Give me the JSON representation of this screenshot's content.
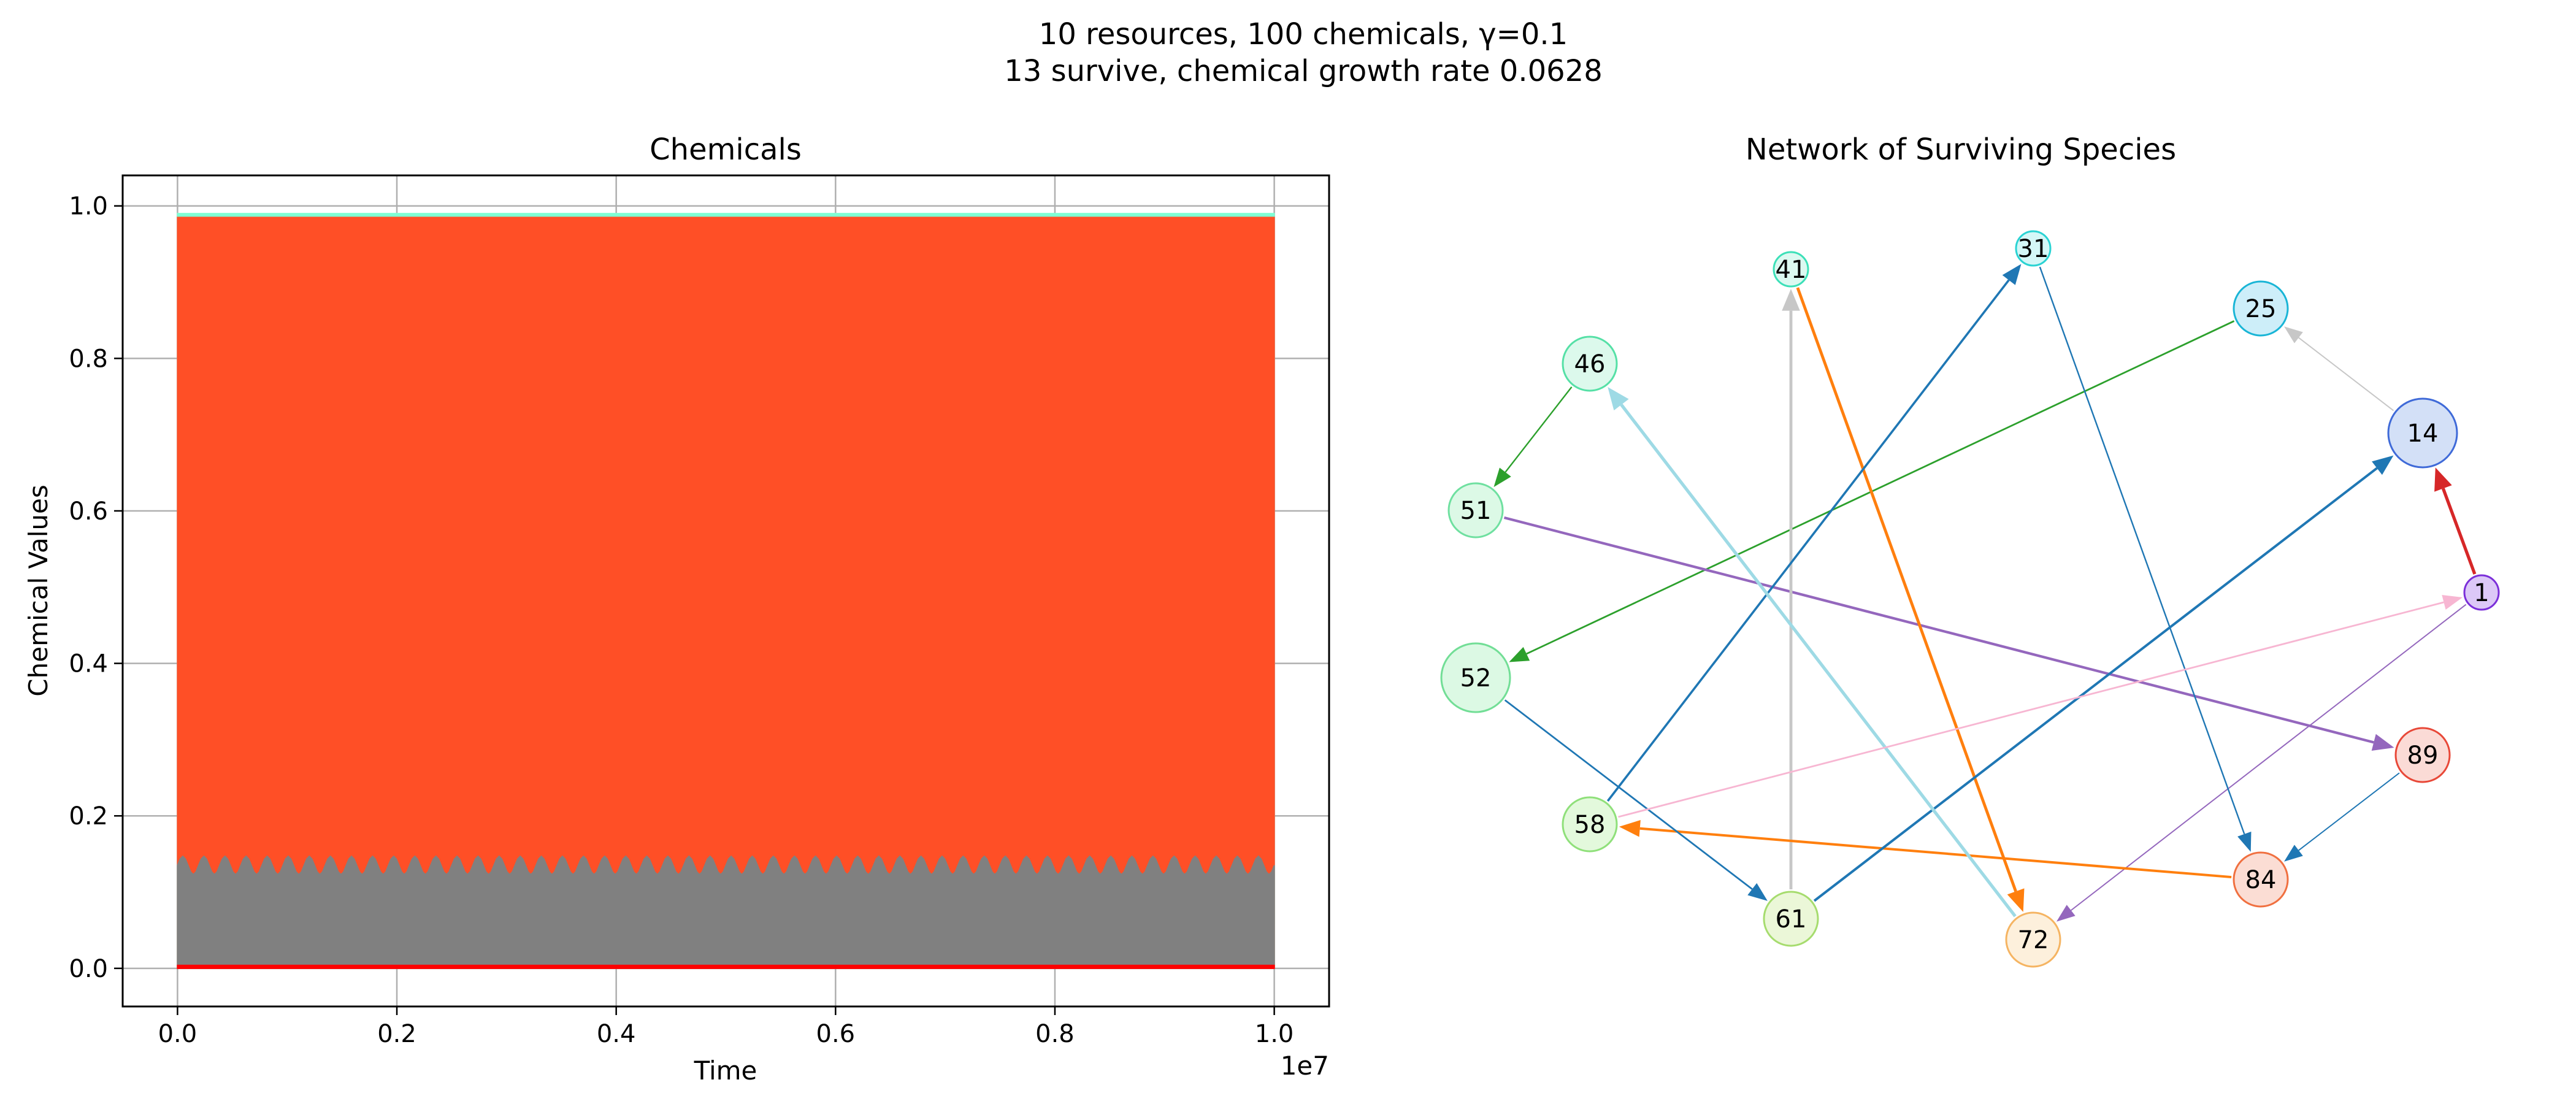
{
  "figure": {
    "title_line1": "10 resources, 100 chemicals, γ=0.1",
    "title_line2": "13 survive, chemical growth rate 0.0628"
  },
  "chart_data": [
    {
      "type": "area",
      "title": "Chemicals",
      "xlabel": "Time",
      "ylabel": "Chemical Values",
      "x_offset_label": "1e7",
      "xlim": [
        -0.05,
        1.05
      ],
      "ylim": [
        -0.05,
        1.04
      ],
      "xticks": [
        0.0,
        0.2,
        0.4,
        0.6,
        0.8,
        1.0
      ],
      "xtick_labels": [
        "0.0",
        "0.2",
        "0.4",
        "0.6",
        "0.8",
        "1.0"
      ],
      "yticks": [
        0.0,
        0.2,
        0.4,
        0.6,
        0.8,
        1.0
      ],
      "ytick_labels": [
        "0.0",
        "0.2",
        "0.4",
        "0.6",
        "0.8",
        "1.0"
      ],
      "grid": true,
      "x_range": [
        0.0,
        1.0
      ],
      "bands": [
        {
          "color": "#7fffd4",
          "lower": 0.0,
          "upper": 0.99
        },
        {
          "color": "#ff4f26",
          "lower": 0.0,
          "upper": 0.985
        },
        {
          "color": "#808080",
          "lower": 0.0,
          "upper_base": 0.135,
          "upper_amp": 0.012,
          "oscillations": 52
        },
        {
          "color": "#ff0000",
          "lower": 0.0,
          "upper": 0.004
        }
      ]
    },
    {
      "type": "network",
      "title": "Network of Surviving Species",
      "nodes": [
        {
          "id": "1",
          "fill": "#dcc8f7",
          "stroke": "#7b2fd9",
          "size": "small"
        },
        {
          "id": "14",
          "fill": "#d3e0f7",
          "stroke": "#3f6ad8",
          "size": "large"
        },
        {
          "id": "25",
          "fill": "#cdeef9",
          "stroke": "#19b5d6",
          "size": "medium"
        },
        {
          "id": "31",
          "fill": "#d4f7f7",
          "stroke": "#2bd3d3",
          "size": "small"
        },
        {
          "id": "41",
          "fill": "#dcf9f1",
          "stroke": "#3ce0b8",
          "size": "small"
        },
        {
          "id": "46",
          "fill": "#dcf9ec",
          "stroke": "#55e0a6",
          "size": "medium"
        },
        {
          "id": "51",
          "fill": "#dcf9e6",
          "stroke": "#6fe0a0",
          "size": "medium"
        },
        {
          "id": "52",
          "fill": "#dcf9e4",
          "stroke": "#72de96",
          "size": "large"
        },
        {
          "id": "58",
          "fill": "#e3f9dc",
          "stroke": "#8fe07a",
          "size": "medium"
        },
        {
          "id": "61",
          "fill": "#ebf7d8",
          "stroke": "#a6dc6e",
          "size": "medium"
        },
        {
          "id": "72",
          "fill": "#fdf0dc",
          "stroke": "#f5b462",
          "size": "medium"
        },
        {
          "id": "84",
          "fill": "#fbddd4",
          "stroke": "#f07040",
          "size": "medium"
        },
        {
          "id": "89",
          "fill": "#fbdbd6",
          "stroke": "#e84838",
          "size": "medium"
        }
      ],
      "edges": [
        {
          "from": "46",
          "to": "51",
          "color": "#2ca02c",
          "width": 2.4
        },
        {
          "from": "25",
          "to": "52",
          "color": "#2ca02c",
          "width": 2.8
        },
        {
          "from": "51",
          "to": "89",
          "color": "#9467bd",
          "width": 4.2
        },
        {
          "from": "1",
          "to": "72",
          "color": "#9467bd",
          "width": 2.0
        },
        {
          "from": "61",
          "to": "41",
          "color": "#c7c7c7",
          "width": 4.8
        },
        {
          "from": "41",
          "to": "72",
          "color": "#ff7f0e",
          "width": 4.8
        },
        {
          "from": "84",
          "to": "58",
          "color": "#ff7f0e",
          "width": 4.0
        },
        {
          "from": "58",
          "to": "31",
          "color": "#1f77b4",
          "width": 3.6
        },
        {
          "from": "31",
          "to": "84",
          "color": "#1f77b4",
          "width": 2.4
        },
        {
          "from": "52",
          "to": "61",
          "color": "#1f77b4",
          "width": 2.8
        },
        {
          "from": "61",
          "to": "14",
          "color": "#1f77b4",
          "width": 4.0
        },
        {
          "from": "89",
          "to": "84",
          "color": "#1f77b4",
          "width": 2.0
        },
        {
          "from": "72",
          "to": "46",
          "color": "#9edae5",
          "width": 5.2
        },
        {
          "from": "58",
          "to": "1",
          "color": "#f7b6d2",
          "width": 2.8
        },
        {
          "from": "1",
          "to": "14",
          "color": "#d62728",
          "width": 5.2
        },
        {
          "from": "14",
          "to": "25",
          "color": "#c7c7c7",
          "width": 2.0
        }
      ]
    }
  ]
}
